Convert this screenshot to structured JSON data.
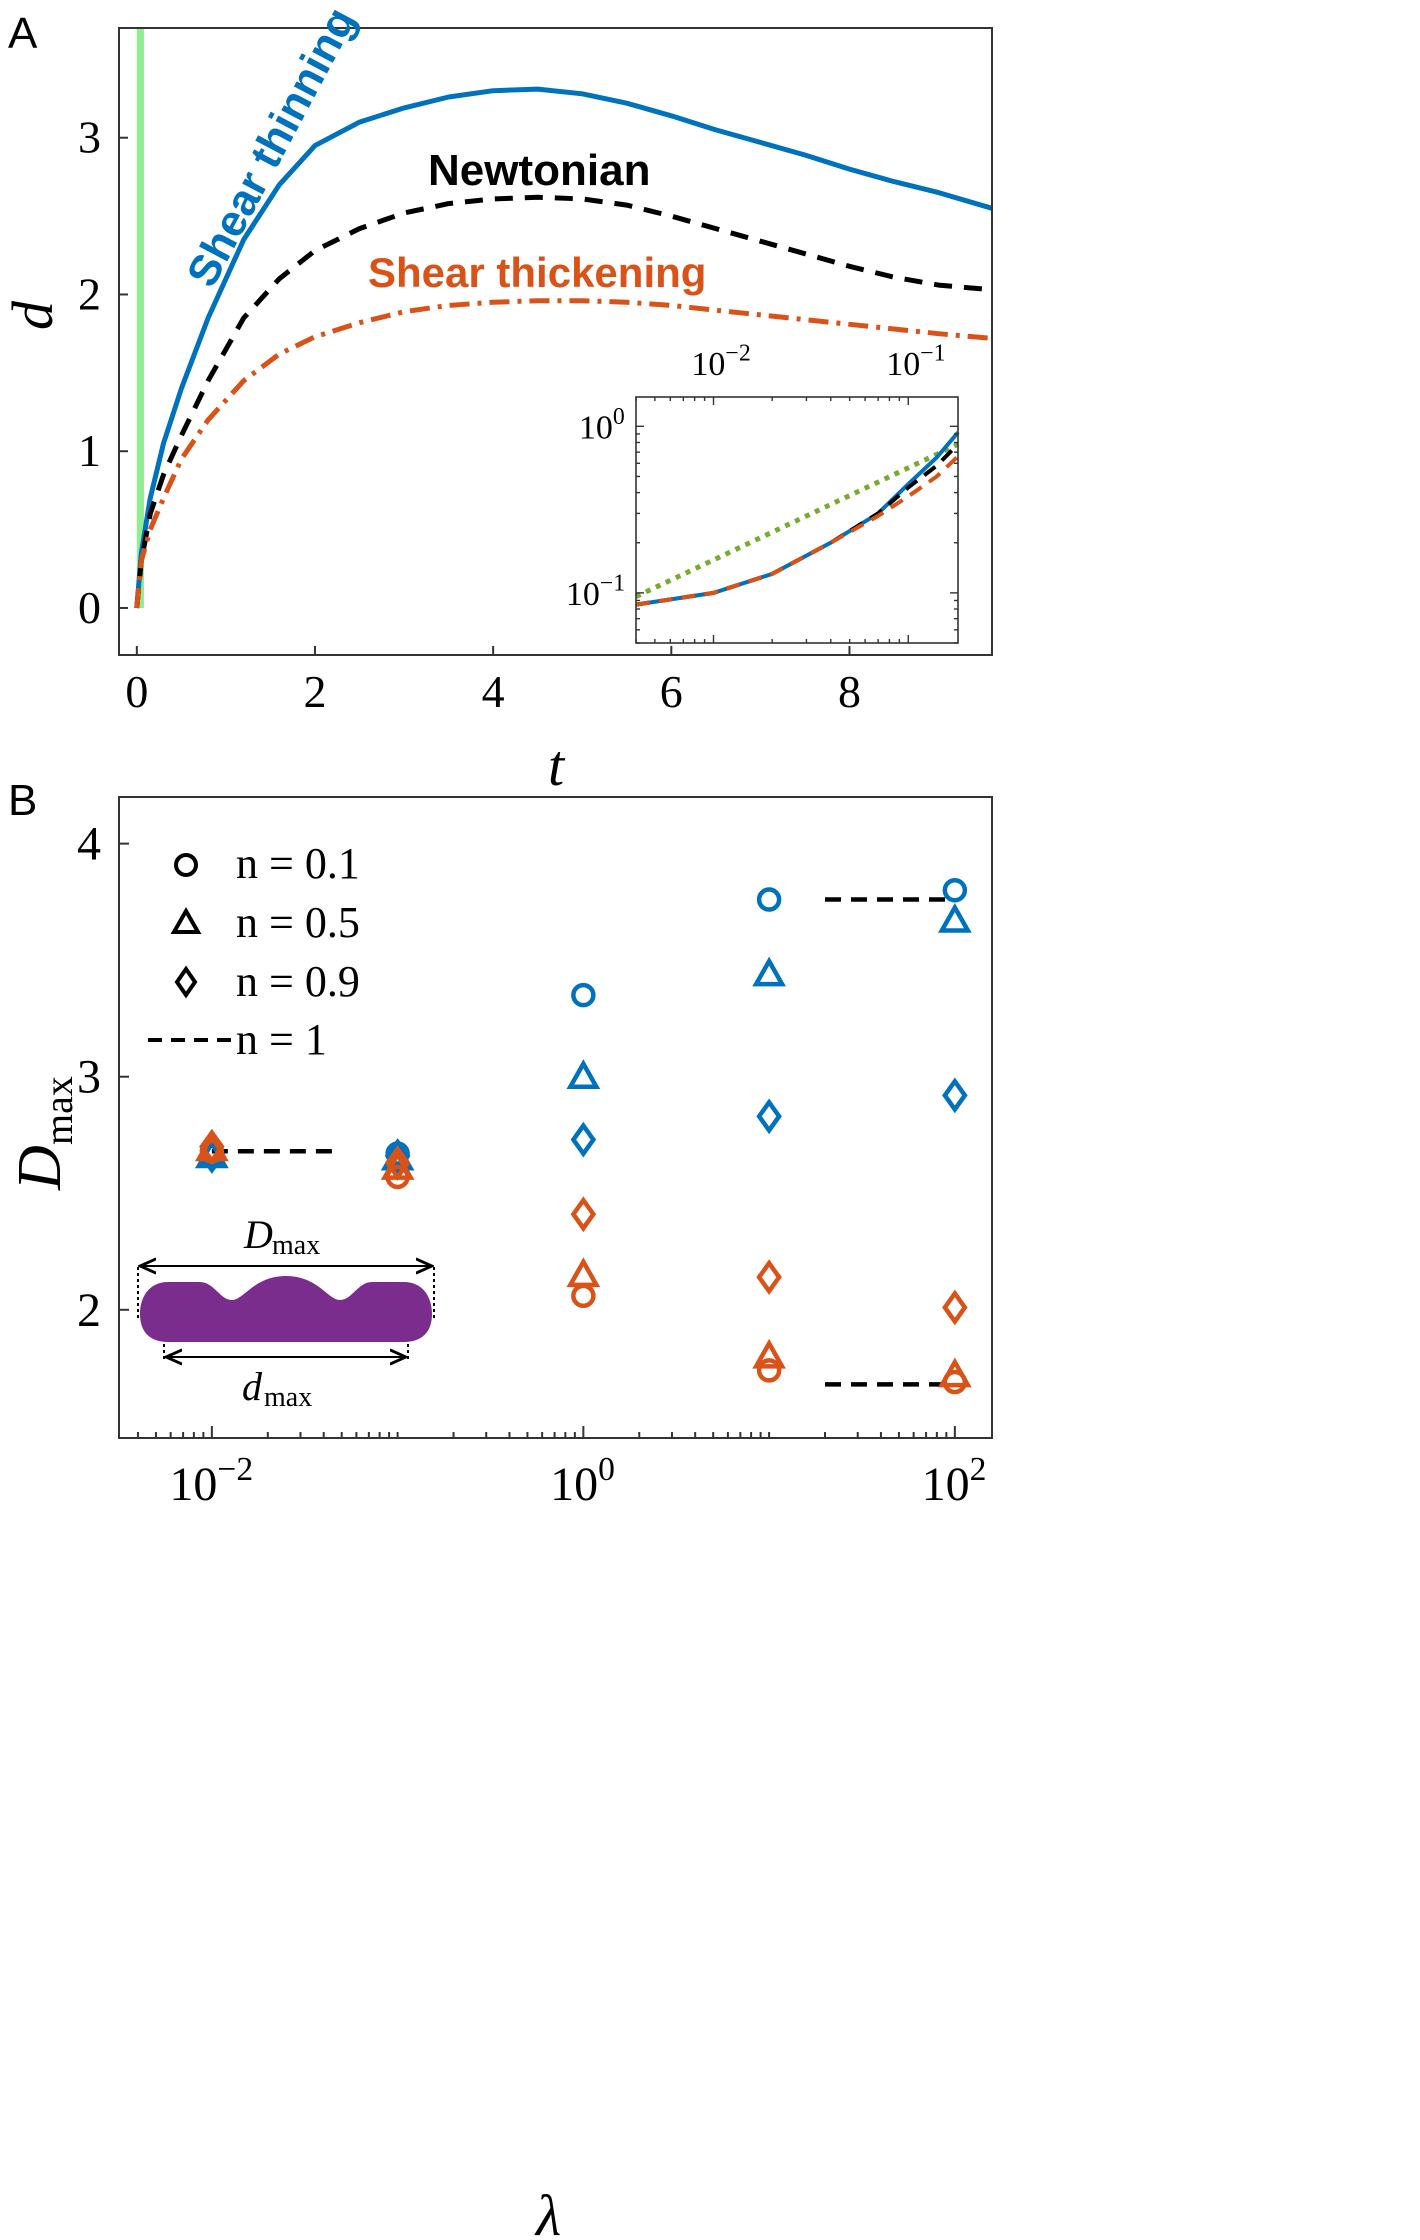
{
  "chart_data": [
    {
      "panel_label": "A",
      "type": "line",
      "xlabel": "t",
      "ylabel": "d",
      "xlim": [
        -0.2,
        9.6
      ],
      "ylim": [
        -0.3,
        3.7
      ],
      "xticks": [
        0,
        2,
        4,
        6,
        8
      ],
      "xtick_labels": [
        "0",
        "2",
        "4",
        "6",
        "8"
      ],
      "yticks": [
        0,
        1,
        2,
        3
      ],
      "ytick_labels": [
        "0",
        "1",
        "2",
        "3"
      ],
      "shaded_band": {
        "x_range": [
          0,
          0.08
        ],
        "color": "#90ee90"
      },
      "series": [
        {
          "name": "Shear thinning",
          "color": "#0072bd",
          "style": "solid",
          "x": [
            0,
            0.05,
            0.15,
            0.3,
            0.5,
            0.8,
            1.2,
            1.6,
            2.0,
            2.5,
            3.0,
            3.5,
            4.0,
            4.5,
            5.0,
            5.5,
            6.0,
            6.5,
            7.0,
            7.5,
            8.0,
            8.5,
            9.0,
            9.6
          ],
          "y": [
            0,
            0.35,
            0.7,
            1.05,
            1.4,
            1.85,
            2.35,
            2.7,
            2.95,
            3.1,
            3.19,
            3.26,
            3.3,
            3.31,
            3.28,
            3.22,
            3.14,
            3.05,
            2.97,
            2.89,
            2.8,
            2.72,
            2.65,
            2.55
          ]
        },
        {
          "name": "Newtonian",
          "color": "#000000",
          "style": "dashed",
          "x": [
            0,
            0.05,
            0.15,
            0.3,
            0.5,
            0.8,
            1.2,
            1.6,
            2.0,
            2.5,
            3.0,
            3.5,
            4.0,
            4.5,
            5.0,
            5.5,
            6.0,
            6.5,
            7.0,
            7.5,
            8.0,
            8.5,
            9.0,
            9.6
          ],
          "y": [
            0,
            0.3,
            0.6,
            0.85,
            1.1,
            1.45,
            1.85,
            2.1,
            2.28,
            2.42,
            2.52,
            2.58,
            2.61,
            2.62,
            2.61,
            2.57,
            2.5,
            2.42,
            2.34,
            2.26,
            2.18,
            2.11,
            2.06,
            2.03
          ]
        },
        {
          "name": "Shear thickening",
          "color": "#d95319",
          "style": "dashdot",
          "x": [
            0,
            0.05,
            0.15,
            0.3,
            0.5,
            0.8,
            1.2,
            1.6,
            2.0,
            2.5,
            3.0,
            3.5,
            4.0,
            4.5,
            5.0,
            5.5,
            6.0,
            6.5,
            7.0,
            7.5,
            8.0,
            8.5,
            9.0,
            9.6
          ],
          "y": [
            0,
            0.3,
            0.5,
            0.7,
            0.95,
            1.2,
            1.45,
            1.62,
            1.73,
            1.82,
            1.89,
            1.93,
            1.95,
            1.96,
            1.96,
            1.95,
            1.93,
            1.9,
            1.87,
            1.84,
            1.81,
            1.78,
            1.75,
            1.72
          ]
        }
      ],
      "annotations": [
        {
          "text": "Shear thinning",
          "color": "#0072bd"
        },
        {
          "text": "Newtonian",
          "color": "#000000"
        },
        {
          "text": "Shear thickening",
          "color": "#d95319"
        }
      ],
      "inset": {
        "type": "line",
        "xscale": "log",
        "yscale": "log",
        "xlim": [
          0.004,
          0.18
        ],
        "ylim": [
          0.05,
          1.5
        ],
        "xtick_labels": [
          {
            "mant": "10",
            "exp": "−2"
          },
          {
            "mant": "10",
            "exp": "−1"
          }
        ],
        "ytick_labels": [
          {
            "mant": "10",
            "exp": "0"
          },
          {
            "mant": "10",
            "exp": "−1"
          }
        ],
        "xticks": [
          0.01,
          0.1
        ],
        "yticks": [
          1,
          0.1
        ],
        "series": [
          {
            "name": "power-law fit",
            "color": "#77ac30",
            "style": "dotted",
            "x": [
              0.004,
              0.18
            ],
            "y": [
              0.095,
              0.78
            ]
          },
          {
            "name": "Shear thinning",
            "color": "#0072bd",
            "style": "solid",
            "x": [
              0.004,
              0.01,
              0.02,
              0.04,
              0.07,
              0.1,
              0.14,
              0.18
            ],
            "y": [
              0.085,
              0.1,
              0.13,
              0.2,
              0.3,
              0.45,
              0.65,
              0.92
            ]
          },
          {
            "name": "Newtonian",
            "color": "#000000",
            "style": "dashed",
            "x": [
              0.004,
              0.01,
              0.02,
              0.04,
              0.07,
              0.1,
              0.14,
              0.18
            ],
            "y": [
              0.085,
              0.1,
              0.13,
              0.2,
              0.3,
              0.43,
              0.58,
              0.78
            ]
          },
          {
            "name": "Shear thickening",
            "color": "#d95319",
            "style": "dashed",
            "x": [
              0.004,
              0.01,
              0.02,
              0.04,
              0.07,
              0.1,
              0.14,
              0.18
            ],
            "y": [
              0.085,
              0.1,
              0.13,
              0.2,
              0.29,
              0.38,
              0.5,
              0.66
            ]
          }
        ]
      }
    },
    {
      "panel_label": "B",
      "type": "scatter",
      "xlabel": "λ",
      "ylabel_main": "D",
      "ylabel_sub": "max",
      "xscale": "log",
      "xlim_log10": [
        -2.5,
        2.2
      ],
      "ylim": [
        1.45,
        4.2
      ],
      "xticks_log10": [
        -2,
        0,
        2
      ],
      "xtick_labels": [
        {
          "mant": "10",
          "exp": "−2"
        },
        {
          "mant": "10",
          "exp": "0"
        },
        {
          "mant": "10",
          "exp": "2"
        }
      ],
      "yticks": [
        2,
        3,
        4
      ],
      "ytick_labels": [
        "2",
        "3",
        "4"
      ],
      "legend": [
        {
          "marker": "circle",
          "label": "n = 0.1"
        },
        {
          "marker": "triangle",
          "label": "n = 0.5"
        },
        {
          "marker": "diamond",
          "label": "n = 0.9"
        },
        {
          "marker": "dash",
          "label": "n = 1"
        }
      ],
      "series": [
        {
          "name": "shear thinning n=0.1",
          "color": "#0072bd",
          "marker": "circle",
          "lambda": [
            0.01,
            0.1,
            1,
            10,
            100
          ],
          "D": [
            2.66,
            2.67,
            3.35,
            3.76,
            3.8
          ]
        },
        {
          "name": "shear thinning n=0.5",
          "color": "#0072bd",
          "marker": "triangle",
          "lambda": [
            0.01,
            0.1,
            1,
            10,
            100
          ],
          "D": [
            2.66,
            2.65,
            3.0,
            3.44,
            3.67
          ]
        },
        {
          "name": "shear thinning n=0.9",
          "color": "#0072bd",
          "marker": "diamond",
          "lambda": [
            0.01,
            0.1,
            1,
            10,
            100
          ],
          "D": [
            2.66,
            2.66,
            2.73,
            2.83,
            2.92
          ]
        },
        {
          "name": "shear thickening n=0.1",
          "color": "#d95319",
          "marker": "circle",
          "lambda": [
            0.01,
            0.1,
            1,
            10,
            100
          ],
          "D": [
            2.68,
            2.57,
            2.06,
            1.74,
            1.69
          ]
        },
        {
          "name": "shear thickening n=0.5",
          "color": "#d95319",
          "marker": "triangle",
          "lambda": [
            0.01,
            0.1,
            1,
            10,
            100
          ],
          "D": [
            2.69,
            2.61,
            2.15,
            1.8,
            1.72
          ]
        },
        {
          "name": "shear thickening n=0.9",
          "color": "#d95319",
          "marker": "diamond",
          "lambda": [
            0.01,
            0.1,
            1,
            10,
            100
          ],
          "D": [
            2.7,
            2.63,
            2.41,
            2.14,
            2.01
          ]
        }
      ],
      "newtonian_lines": [
        {
          "lambda_range": [
            0.01,
            0.05
          ],
          "D": 2.68
        },
        {
          "lambda_range": [
            20,
            100
          ],
          "D": 3.76
        },
        {
          "lambda_range": [
            20,
            100
          ],
          "D": 1.68
        }
      ],
      "inset_drop": {
        "color": "#7b2d8e",
        "label_top_main": "D",
        "label_top_sub": "max",
        "label_bottom_main": "d",
        "label_bottom_sub": "max"
      }
    }
  ]
}
